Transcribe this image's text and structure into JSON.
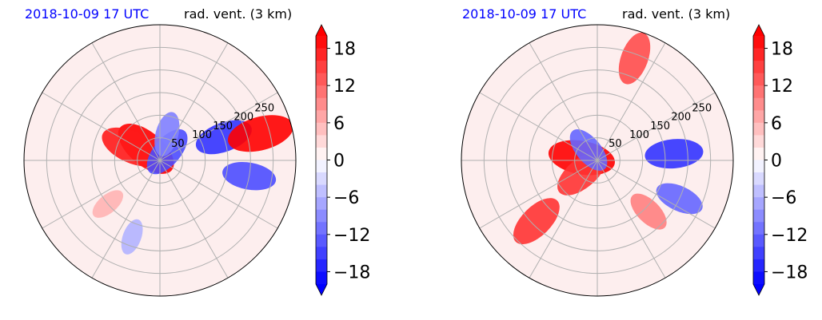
{
  "chart_data": [
    {
      "type": "heatmap",
      "projection": "polar",
      "title_left": "2018-10-09 17 UTC",
      "title_right": "rad. vent. (3 km)",
      "range_rings": [
        50,
        100,
        150,
        200,
        250
      ],
      "radial_spokes_deg": [
        0,
        30,
        60,
        90,
        120,
        150,
        180,
        210,
        240,
        270,
        300,
        330
      ],
      "colorbar": {
        "ticks": [
          18,
          12,
          6,
          0,
          -6,
          -12,
          -18
        ],
        "min": -20,
        "max": 20,
        "extend": "both"
      },
      "features": [
        {
          "range": 40,
          "azimuth_deg": 310,
          "value": 20
        },
        {
          "range": 70,
          "azimuth_deg": 295,
          "value": 18
        },
        {
          "range": 25,
          "azimuth_deg": 40,
          "value": -14
        },
        {
          "range": 60,
          "azimuth_deg": 15,
          "value": -10
        },
        {
          "range": 150,
          "azimuth_deg": 70,
          "value": -16
        },
        {
          "range": 230,
          "azimuth_deg": 75,
          "value": 20
        },
        {
          "range": 200,
          "azimuth_deg": 100,
          "value": -14
        },
        {
          "range": 180,
          "azimuth_deg": 200,
          "value": -6
        },
        {
          "range": 150,
          "azimuth_deg": 230,
          "value": 6
        }
      ]
    },
    {
      "type": "heatmap",
      "projection": "polar",
      "title_left": "2018-10-09 17 UTC",
      "title_right": "rad. vent. (3 km)",
      "range_rings": [
        50,
        100,
        150,
        200,
        250
      ],
      "radial_spokes_deg": [
        0,
        30,
        60,
        90,
        120,
        150,
        180,
        210,
        240,
        270,
        300,
        330
      ],
      "colorbar": {
        "ticks": [
          18,
          12,
          6,
          0,
          -6,
          -12,
          -18
        ],
        "min": -20,
        "max": 20,
        "extend": "both"
      },
      "features": [
        {
          "range": 35,
          "azimuth_deg": 280,
          "value": 20
        },
        {
          "range": 45,
          "azimuth_deg": 230,
          "value": 16
        },
        {
          "range": 30,
          "azimuth_deg": 320,
          "value": -12
        },
        {
          "range": 190,
          "azimuth_deg": 225,
          "value": 16
        },
        {
          "range": 240,
          "azimuth_deg": 20,
          "value": 14
        },
        {
          "range": 170,
          "azimuth_deg": 85,
          "value": -16
        },
        {
          "range": 200,
          "azimuth_deg": 115,
          "value": -12
        },
        {
          "range": 160,
          "azimuth_deg": 135,
          "value": 10
        }
      ]
    }
  ]
}
